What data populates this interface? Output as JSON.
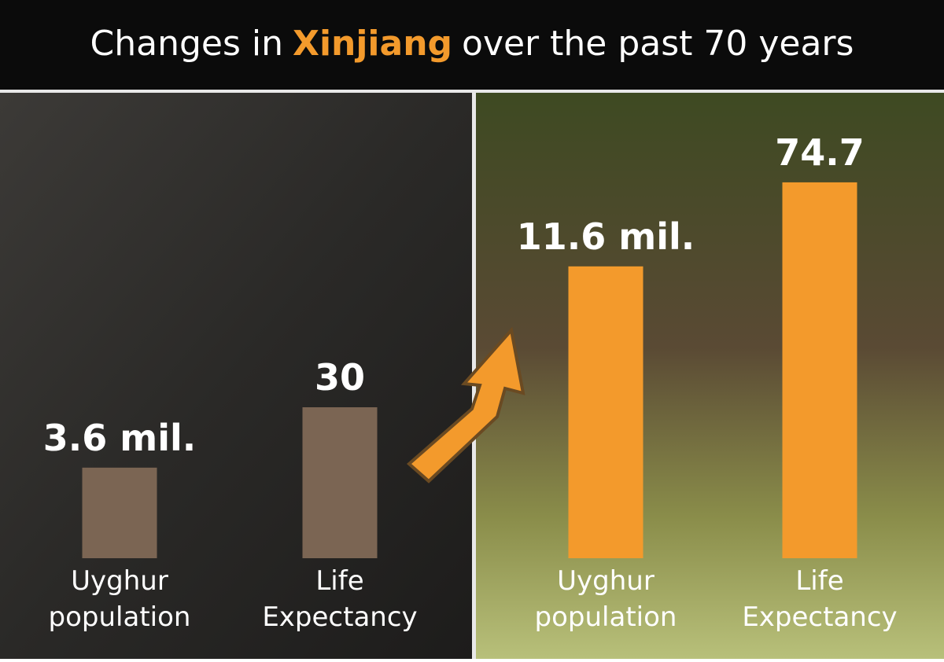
{
  "title": {
    "before": "Changes in",
    "highlight": "Xinjiang",
    "after": "over the past 70 years"
  },
  "chart_data": [
    {
      "type": "bar",
      "categories": [
        "Uyghur population",
        "Life Expectancy"
      ],
      "values": [
        3.6,
        30
      ],
      "value_labels": [
        "3.6 mil.",
        "30"
      ],
      "color": "#7b6553"
    },
    {
      "type": "bar",
      "categories": [
        "Uyghur population",
        "Life Expectancy"
      ],
      "values": [
        11.6,
        74.7
      ],
      "value_labels": [
        "11.6 mil.",
        "74.7"
      ],
      "color": "#f39a2c"
    }
  ]
}
